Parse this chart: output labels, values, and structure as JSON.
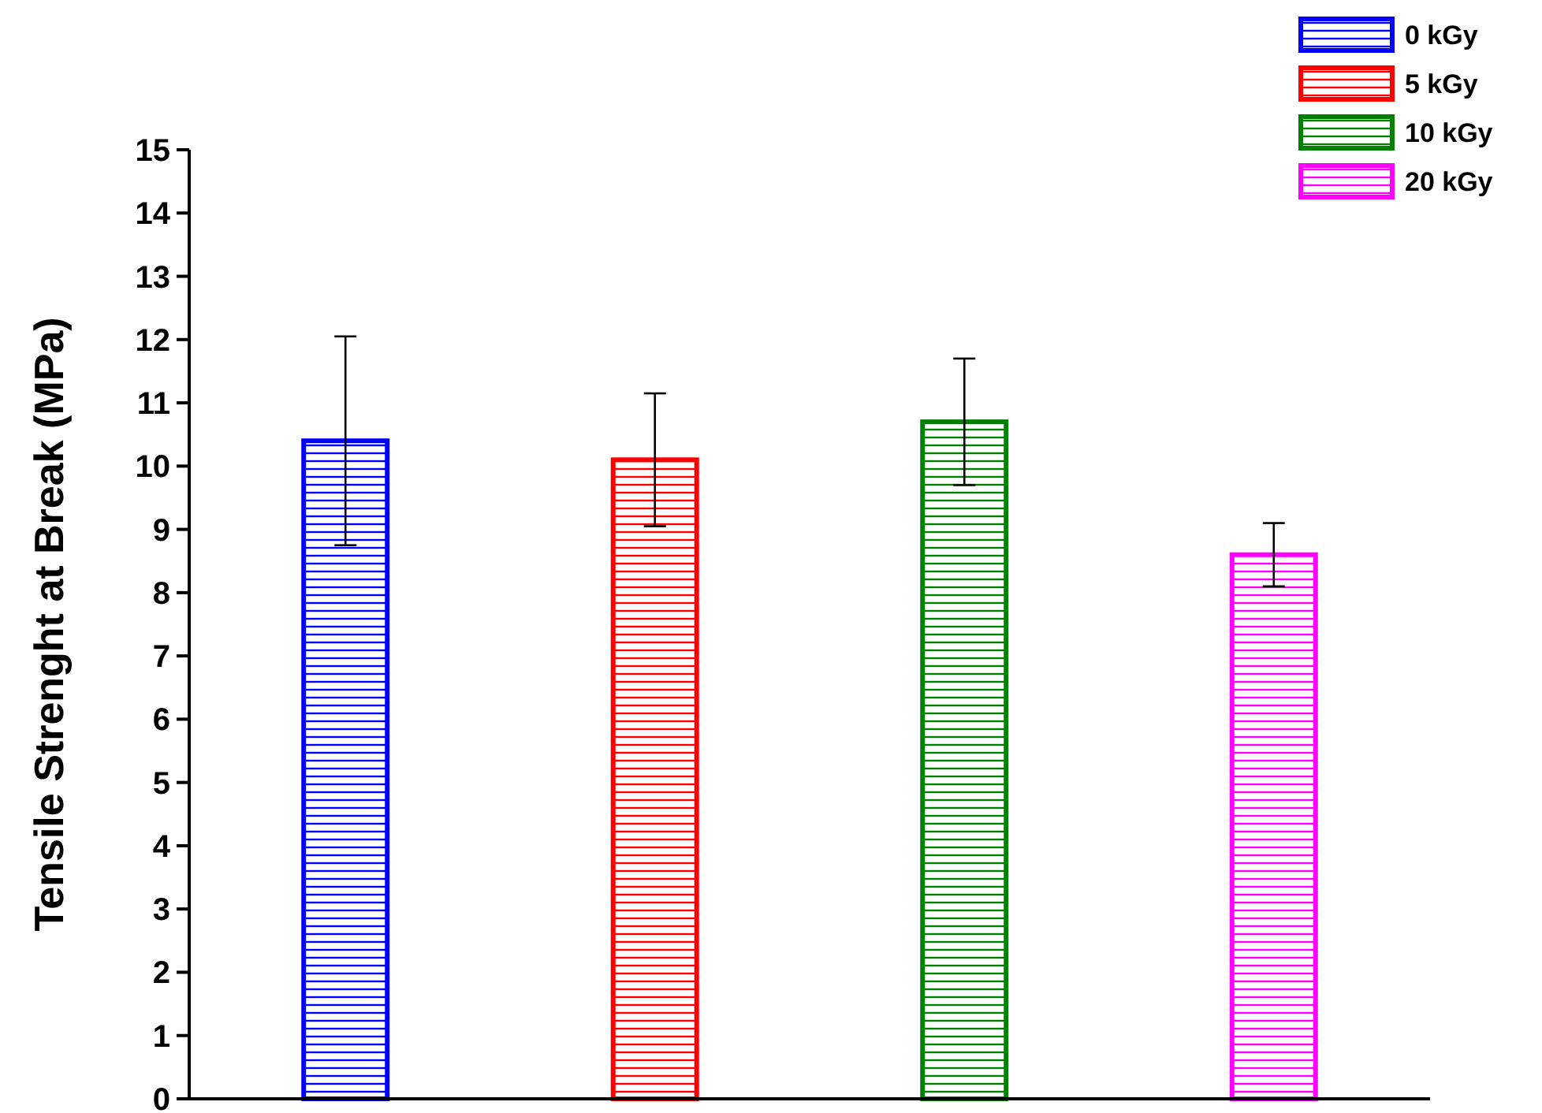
{
  "chart_data": {
    "type": "bar",
    "ylabel": "Tensile Strenght at Break (MPa)",
    "categories": [
      null,
      null,
      null,
      null
    ],
    "series": [
      {
        "name": "0 kGy",
        "color": "#0000ff",
        "values": [
          10.4,
          null,
          null,
          null
        ],
        "errors": [
          1.65,
          null,
          null,
          null
        ]
      },
      {
        "name": "5 kGy",
        "color": "#ff0000",
        "values": [
          null,
          10.1,
          null,
          null
        ],
        "errors": [
          null,
          1.05,
          null,
          null
        ]
      },
      {
        "name": "10 kGy",
        "color": "#008000",
        "values": [
          null,
          null,
          10.7,
          null
        ],
        "errors": [
          null,
          null,
          1.0,
          null
        ]
      },
      {
        "name": "20 kGy",
        "color": "#ff00ff",
        "values": [
          null,
          null,
          null,
          8.6
        ],
        "errors": [
          null,
          null,
          null,
          0.5
        ]
      }
    ],
    "ylim": [
      0,
      15
    ],
    "yticks": [
      0,
      1,
      2,
      3,
      4,
      5,
      6,
      7,
      8,
      9,
      10,
      11,
      12,
      13,
      14,
      15
    ],
    "grid": false,
    "legend": "top right"
  }
}
